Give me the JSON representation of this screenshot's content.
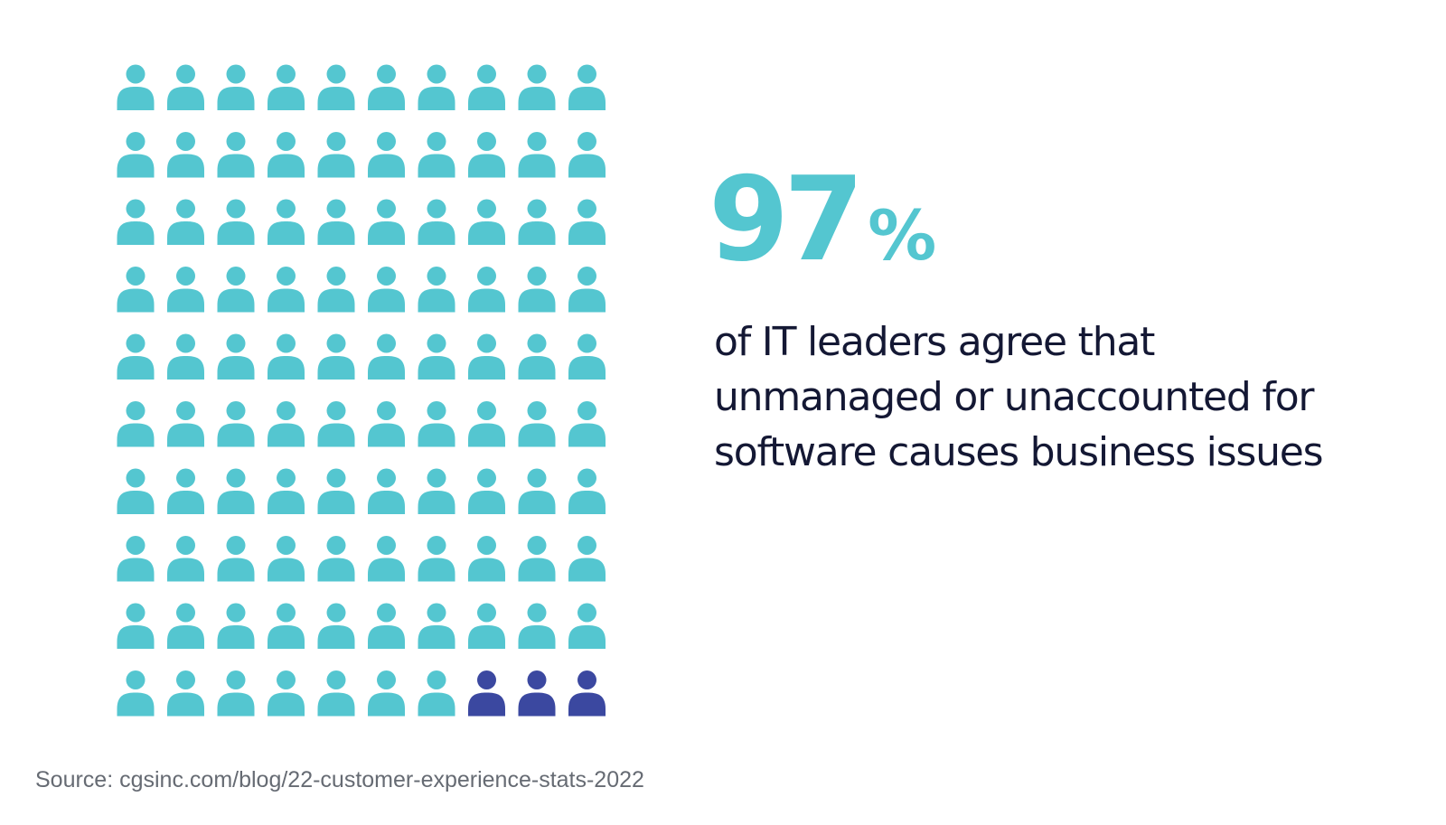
{
  "chart_data": {
    "type": "pictogram",
    "total": 100,
    "value": 97,
    "rows": 10,
    "columns": 10,
    "colors": {
      "highlight": "#54c6d0",
      "remainder": "#3b48a0"
    },
    "icon": "person-icon"
  },
  "stat": {
    "number": "97",
    "unit": "%",
    "description": "of IT leaders agree that unmanaged or unaccounted for software causes business issues"
  },
  "source": "Source: cgsinc.com/blog/22-customer-experience-stats-2022"
}
